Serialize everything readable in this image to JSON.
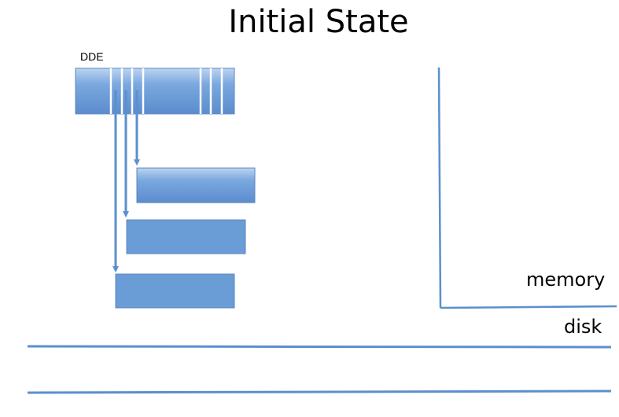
{
  "title": "Initial State",
  "dde_label": "DDE",
  "regions": {
    "memory": "memory",
    "disk": "disk"
  },
  "colors": {
    "block_fill": "#5f96d3",
    "block_edge": "#4f7fb8",
    "arrow": "#5b8fce",
    "line": "#5b8fce"
  }
}
